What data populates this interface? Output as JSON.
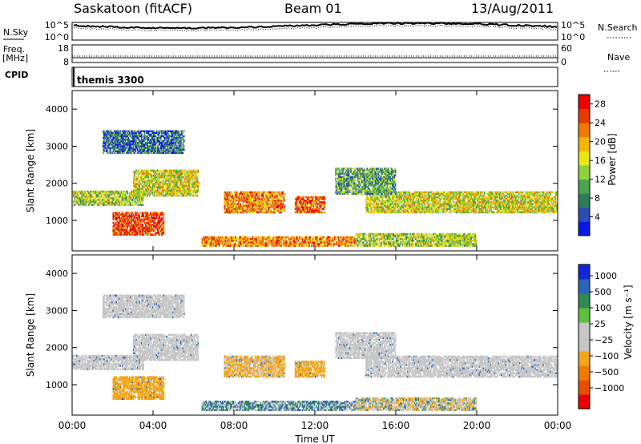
{
  "header": {
    "title": "Saskatoon (fitACF)",
    "beam": "Beam 01",
    "date": "13/Aug/2011"
  },
  "strip": {
    "left_sky": "N.Sky",
    "left_freq": "Freq.",
    "left_freq_unit": "[MHz]",
    "left_cpid": "CPID",
    "right_search": "N.Search",
    "right_nave": "Nave",
    "sky_ticks": [
      "10^5",
      "10^0"
    ],
    "freq_ticks": [
      "18",
      "8"
    ],
    "search_ticks": [
      "10^5",
      "10^0"
    ],
    "nave_ticks": [
      "60",
      "0"
    ],
    "cpid_text": "themis 3300"
  },
  "colors": {
    "power": [
      "#0a18e6",
      "#2a4fb3",
      "#2e7d5a",
      "#4ba54c",
      "#8fd13a",
      "#e6e612",
      "#f5b400",
      "#f07a00",
      "#e63a00",
      "#ee0000"
    ],
    "velocity": [
      "#1028d8",
      "#2b64b8",
      "#2f8a55",
      "#5cc23c",
      "#c6c6c6",
      "#c6c6c6",
      "#f2a51a",
      "#f07a00",
      "#e65000",
      "#ee0000"
    ]
  },
  "chart_data": [
    {
      "type": "heatmap",
      "name": "power",
      "ylabel": "Slant Range [km]",
      "xlabel": "Time UT",
      "x_ticks": [
        "00:00",
        "04:00",
        "08:00",
        "12:00",
        "16:00",
        "20:00",
        "00:00"
      ],
      "y_ticks": [
        "1000",
        "2000",
        "3000",
        "4000"
      ],
      "xlim": [
        0,
        24
      ],
      "ylim": [
        180,
        4500
      ],
      "colorbar_label": "Power [dB]",
      "colorbar_ticks": [
        "4",
        "8",
        "12",
        "16",
        "20",
        "24",
        "28"
      ],
      "colorbar_range": [
        0,
        30
      ],
      "echo_bands": [
        {
          "t0": 0.0,
          "t1": 3.5,
          "r0": 1400,
          "r1": 1800,
          "level": 14
        },
        {
          "t0": 3.0,
          "t1": 6.2,
          "r0": 1650,
          "r1": 2350,
          "level": 16
        },
        {
          "t0": 2.0,
          "t1": 4.5,
          "r0": 600,
          "r1": 1200,
          "level": 26
        },
        {
          "t0": 1.5,
          "t1": 5.5,
          "r0": 2800,
          "r1": 3400,
          "level": 6
        },
        {
          "t0": 6.4,
          "t1": 14.0,
          "r0": 300,
          "r1": 550,
          "level": 22
        },
        {
          "t0": 7.5,
          "t1": 10.5,
          "r0": 1200,
          "r1": 1750,
          "level": 22
        },
        {
          "t0": 11.0,
          "t1": 12.5,
          "r0": 1200,
          "r1": 1650,
          "level": 24
        },
        {
          "t0": 14.5,
          "t1": 24.0,
          "r0": 1200,
          "r1": 1750,
          "level": 16
        },
        {
          "t0": 13.0,
          "t1": 16.0,
          "r0": 1700,
          "r1": 2400,
          "level": 10
        },
        {
          "t0": 14.0,
          "t1": 20.0,
          "r0": 300,
          "r1": 650,
          "level": 14
        }
      ]
    },
    {
      "type": "heatmap",
      "name": "velocity",
      "ylabel": "Slant Range [km]",
      "xlabel": "Time UT",
      "x_ticks": [
        "00:00",
        "04:00",
        "08:00",
        "12:00",
        "16:00",
        "20:00",
        "00:00"
      ],
      "y_ticks": [
        "1000",
        "2000",
        "3000",
        "4000"
      ],
      "xlim": [
        0,
        24
      ],
      "ylim": [
        180,
        4500
      ],
      "colorbar_label": "Velocity [m s⁻¹]",
      "colorbar_ticks": [
        "1000",
        "500",
        "100",
        "25",
        "−25",
        "−100",
        "−500",
        "−1000"
      ],
      "echo_bands": [
        {
          "t0": 0.0,
          "t1": 3.5,
          "r0": 1400,
          "r1": 1800,
          "level": -10
        },
        {
          "t0": 3.0,
          "t1": 6.2,
          "r0": 1650,
          "r1": 2350,
          "level": 0
        },
        {
          "t0": 2.0,
          "t1": 4.5,
          "r0": 600,
          "r1": 1200,
          "level": -300
        },
        {
          "t0": 1.5,
          "t1": 5.5,
          "r0": 2800,
          "r1": 3400,
          "level": 0
        },
        {
          "t0": 6.4,
          "t1": 14.0,
          "r0": 300,
          "r1": 550,
          "level": 60
        },
        {
          "t0": 7.5,
          "t1": 10.5,
          "r0": 1200,
          "r1": 1750,
          "level": -150
        },
        {
          "t0": 11.0,
          "t1": 12.5,
          "r0": 1200,
          "r1": 1650,
          "level": -200
        },
        {
          "t0": 14.5,
          "t1": 24.0,
          "r0": 1200,
          "r1": 1750,
          "level": 0
        },
        {
          "t0": 13.0,
          "t1": 16.0,
          "r0": 1700,
          "r1": 2400,
          "level": 0
        },
        {
          "t0": 14.0,
          "t1": 20.0,
          "r0": 300,
          "r1": 650,
          "level": -60
        }
      ]
    }
  ]
}
